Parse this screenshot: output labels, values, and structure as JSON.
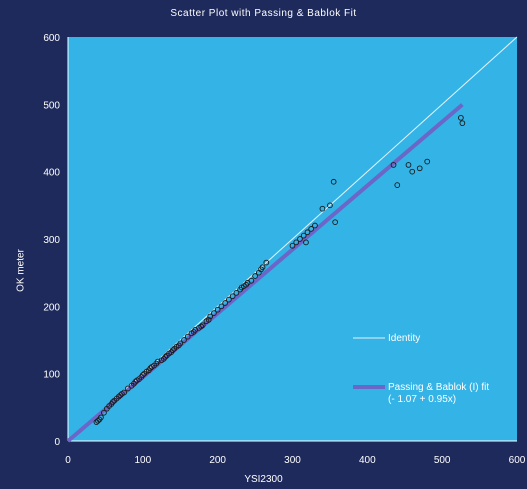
{
  "chart_data": {
    "type": "scatter",
    "title": "Scatter Plot with Passing & Bablok Fit",
    "xlabel": "YSI2300",
    "ylabel": "OK meter",
    "xlim": [
      0,
      600
    ],
    "ylim": [
      0,
      600
    ],
    "xticks": [
      "0",
      "100",
      "200",
      "300",
      "400",
      "500",
      "600"
    ],
    "yticks": [
      "0",
      "100",
      "200",
      "300",
      "400",
      "500",
      "600"
    ],
    "grid": false,
    "legend_position": "right",
    "colors": {
      "background": "#1f2a5c",
      "plot_area": "#33b3e6",
      "points": "#1a1a1a",
      "identity": "#e6f3fb",
      "fit": "#6b66c7"
    },
    "series": [
      {
        "name": "Identity",
        "type": "line",
        "x": [
          0,
          600
        ],
        "y": [
          0,
          600
        ]
      },
      {
        "name": "Passing & Bablok (I) fit",
        "equation": "(- 1.07 + 0.95x)",
        "type": "line",
        "x": [
          0,
          527
        ],
        "y": [
          -1.07,
          499.6
        ]
      },
      {
        "type": "scatter",
        "x": [
          38,
          40,
          42,
          44,
          48,
          52,
          55,
          58,
          60,
          62,
          65,
          68,
          70,
          72,
          75,
          80,
          85,
          88,
          90,
          92,
          95,
          98,
          100,
          102,
          105,
          108,
          110,
          112,
          115,
          118,
          120,
          125,
          128,
          130,
          132,
          135,
          138,
          140,
          142,
          145,
          148,
          150,
          155,
          160,
          165,
          168,
          170,
          175,
          178,
          180,
          185,
          188,
          190,
          195,
          200,
          205,
          210,
          215,
          220,
          225,
          230,
          232,
          235,
          238,
          240,
          245,
          250,
          255,
          258,
          260,
          265,
          300,
          305,
          310,
          315,
          318,
          320,
          325,
          330,
          340,
          350,
          355,
          357,
          435,
          440,
          455,
          460,
          470,
          480,
          525,
          527
        ],
        "y": [
          28,
          30,
          32,
          35,
          42,
          48,
          52,
          55,
          58,
          60,
          63,
          66,
          68,
          70,
          72,
          78,
          82,
          85,
          88,
          90,
          92,
          95,
          98,
          100,
          103,
          105,
          108,
          110,
          112,
          115,
          118,
          120,
          122,
          125,
          127,
          130,
          132,
          135,
          137,
          140,
          142,
          145,
          150,
          155,
          160,
          162,
          165,
          168,
          170,
          172,
          178,
          180,
          185,
          190,
          195,
          200,
          205,
          210,
          215,
          220,
          225,
          228,
          230,
          232,
          235,
          238,
          245,
          250,
          255,
          258,
          265,
          290,
          295,
          300,
          305,
          295,
          310,
          315,
          320,
          345,
          350,
          385,
          325,
          410,
          380,
          410,
          400,
          405,
          415,
          480,
          472
        ]
      }
    ]
  }
}
